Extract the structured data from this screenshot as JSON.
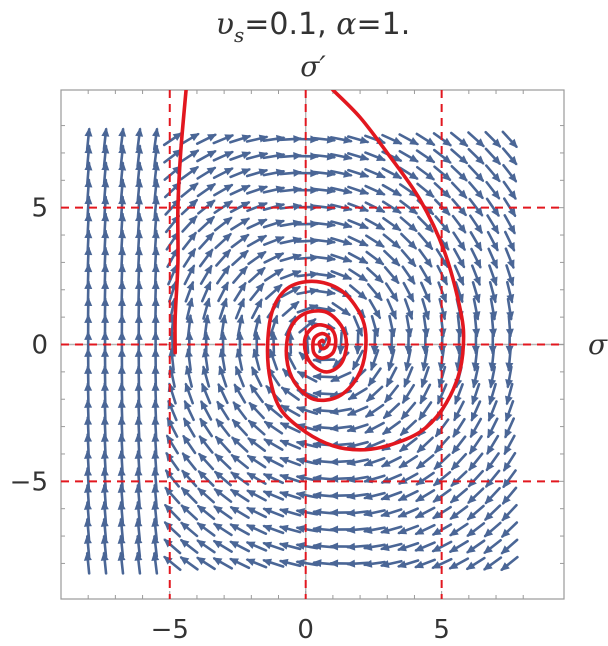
{
  "chart_data": {
    "type": "streamplot",
    "title": "υs=0.1, α=1.",
    "title_parts": {
      "ups": "υ",
      "sub": "s",
      "rest": "=0.1, ",
      "alpha": "α",
      "rest2": "=1."
    },
    "xlabel": "σ",
    "ylabel": "σ′",
    "xlim": [
      -9,
      9.5
    ],
    "ylim": [
      -9.3,
      9.3
    ],
    "x_ticks": [
      -5,
      0,
      5
    ],
    "y_ticks": [
      -5,
      0,
      5
    ],
    "x_tick_labels": [
      "−5",
      "0",
      "5"
    ],
    "y_tick_labels": [
      "−5",
      "0",
      "5"
    ],
    "field_grid_range": [
      -8,
      8
    ],
    "reference_lines_x": [
      -5,
      0,
      5
    ],
    "reference_lines_y": [
      -5,
      0,
      5
    ],
    "fixed_point": {
      "x": 0.6,
      "y": 0.1
    },
    "trajectories": [
      {
        "name": "",
        "points": [
          [
            -4.8,
            -0.3
          ],
          [
            -4.8,
            1
          ],
          [
            -4.7,
            3
          ],
          [
            -4.7,
            5
          ],
          [
            -4.6,
            7
          ],
          [
            -4.4,
            9.3
          ]
        ]
      },
      {
        "name": "",
        "points": [
          [
            1,
            9.3
          ],
          [
            2,
            8.3
          ],
          [
            3,
            7
          ],
          [
            4.2,
            5.3
          ],
          [
            5.1,
            3.4
          ],
          [
            5.7,
            1.2
          ],
          [
            5.8,
            0
          ],
          [
            5.6,
            -1.2
          ],
          [
            5,
            -2.4
          ],
          [
            4.2,
            -3.2
          ],
          [
            3,
            -3.7
          ],
          [
            2,
            -3.85
          ],
          [
            1,
            -3.7
          ],
          [
            0,
            -3.2
          ],
          [
            -0.9,
            -2.4
          ],
          [
            -1.3,
            -1.3
          ],
          [
            -1.4,
            0
          ],
          [
            -1.2,
            1.3
          ],
          [
            -0.6,
            2.1
          ],
          [
            0.4,
            2.3
          ],
          [
            1.4,
            1.9
          ],
          [
            2.1,
            0.9
          ],
          [
            2.2,
            -0.2
          ],
          [
            1.9,
            -1.2
          ],
          [
            1.2,
            -1.9
          ],
          [
            0.3,
            -2
          ],
          [
            -0.4,
            -1.4
          ],
          [
            -0.7,
            -0.5
          ],
          [
            -0.6,
            0.5
          ],
          [
            -0.1,
            1.1
          ],
          [
            0.7,
            1.2
          ],
          [
            1.3,
            0.7
          ],
          [
            1.5,
            0
          ],
          [
            1.3,
            -0.7
          ],
          [
            0.8,
            -1
          ],
          [
            0.3,
            -0.8
          ],
          [
            0,
            -0.3
          ],
          [
            0,
            0.3
          ],
          [
            0.4,
            0.7
          ],
          [
            0.9,
            0.6
          ],
          [
            1.1,
            0.2
          ],
          [
            1,
            -0.3
          ],
          [
            0.6,
            -0.5
          ],
          [
            0.3,
            -0.3
          ],
          [
            0.3,
            0.2
          ],
          [
            0.6,
            0.4
          ],
          [
            0.85,
            0.25
          ],
          [
            0.8,
            -0.05
          ],
          [
            0.6,
            -0.15
          ],
          [
            0.5,
            0.05
          ],
          [
            0.6,
            0.15
          ],
          [
            0.65,
            0.1
          ]
        ]
      }
    ],
    "colors": {
      "stream": "#4a6696",
      "trajectory": "#e2171f",
      "reference": "#e2171f",
      "grid": "#b5b5b5",
      "frame": "#9a9a9a"
    }
  }
}
